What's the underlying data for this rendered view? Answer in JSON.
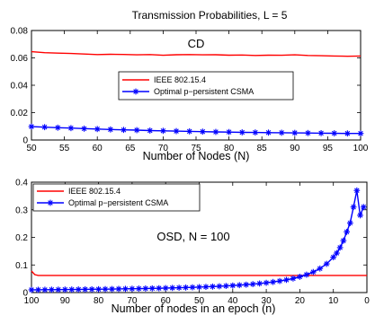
{
  "figure_title": "Transmission Probabilities, L = 5",
  "legend": {
    "ieee_label": "IEEE 802.15.4",
    "optimal_label": "Optimal p−persistent CSMA"
  },
  "colors": {
    "ieee": "#ff0000",
    "optimal": "#0000ff",
    "axis": "#000000"
  },
  "chart_data": [
    {
      "type": "line",
      "title": "Transmission Probabilities, L = 5",
      "annotation": "CD",
      "xlabel": "Number of Nodes (N)",
      "ylabel": "",
      "xlim": [
        50,
        100
      ],
      "ylim": [
        0,
        0.08
      ],
      "xticks": [
        "50",
        "55",
        "60",
        "65",
        "70",
        "75",
        "80",
        "85",
        "90",
        "95",
        "100"
      ],
      "yticks": [
        "0",
        "0.02",
        "0.04",
        "0.06",
        "0.08"
      ],
      "x": [
        50,
        52,
        54,
        56,
        58,
        60,
        62,
        64,
        66,
        68,
        70,
        72,
        74,
        76,
        78,
        80,
        82,
        84,
        86,
        88,
        90,
        92,
        94,
        96,
        98,
        100
      ],
      "series": [
        {
          "name": "IEEE 802.15.4",
          "values": [
            0.0645,
            0.0638,
            0.0635,
            0.0632,
            0.0628,
            0.0624,
            0.0626,
            0.0625,
            0.0622,
            0.0624,
            0.0619,
            0.0623,
            0.0624,
            0.0622,
            0.0623,
            0.062,
            0.0621,
            0.0618,
            0.062,
            0.0619,
            0.0622,
            0.0618,
            0.0616,
            0.0614,
            0.0612,
            0.0614
          ]
        },
        {
          "name": "Optimal p−persistent CSMA",
          "values": [
            0.0098,
            0.0094,
            0.009,
            0.0087,
            0.0083,
            0.008,
            0.0077,
            0.0074,
            0.0072,
            0.0069,
            0.0067,
            0.0065,
            0.0063,
            0.0061,
            0.0059,
            0.0058,
            0.0056,
            0.0055,
            0.0054,
            0.0053,
            0.0052,
            0.0051,
            0.005,
            0.0049,
            0.0048,
            0.0048
          ]
        }
      ],
      "legend_position": "center",
      "grid": false
    },
    {
      "type": "line",
      "annotation": "OSD, N = 100",
      "xlabel": "Number of nodes in an epoch (n)",
      "ylabel": "",
      "xlim": [
        100,
        0
      ],
      "ylim": [
        0,
        0.4
      ],
      "xticks": [
        "100",
        "90",
        "80",
        "70",
        "60",
        "50",
        "40",
        "30",
        "20",
        "10",
        "0"
      ],
      "yticks": [
        "0",
        "0.1",
        "0.2",
        "0.3",
        "0.4"
      ],
      "series": [
        {
          "name": "IEEE 802.15.4",
          "x": [
            100,
            99,
            98,
            0
          ],
          "values": [
            0.078,
            0.065,
            0.062,
            0.062
          ]
        },
        {
          "name": "Optimal p−persistent CSMA",
          "x": [
            100,
            98,
            96,
            94,
            92,
            90,
            88,
            86,
            84,
            82,
            80,
            78,
            76,
            74,
            72,
            70,
            68,
            66,
            64,
            62,
            60,
            58,
            56,
            54,
            52,
            50,
            48,
            46,
            44,
            42,
            40,
            38,
            36,
            34,
            32,
            30,
            28,
            26,
            24,
            22,
            20,
            18,
            16,
            14,
            12,
            10,
            9,
            8,
            7,
            6,
            5,
            4,
            3,
            2,
            1
          ],
          "values": [
            0.0099,
            0.0101,
            0.0103,
            0.0105,
            0.0107,
            0.0109,
            0.0111,
            0.0114,
            0.0116,
            0.0119,
            0.0122,
            0.0125,
            0.0128,
            0.0132,
            0.0135,
            0.0139,
            0.0143,
            0.0147,
            0.0152,
            0.0157,
            0.0163,
            0.0169,
            0.0175,
            0.0182,
            0.019,
            0.0198,
            0.0207,
            0.0217,
            0.0228,
            0.024,
            0.0254,
            0.0269,
            0.0286,
            0.0306,
            0.0328,
            0.0353,
            0.0383,
            0.0418,
            0.046,
            0.051,
            0.0572,
            0.0648,
            0.0745,
            0.0871,
            0.104,
            0.128,
            0.143,
            0.163,
            0.188,
            0.22,
            0.252,
            0.31,
            0.37,
            0.28,
            0.31
          ]
        }
      ],
      "legend_position": "top-left",
      "grid": false
    }
  ]
}
